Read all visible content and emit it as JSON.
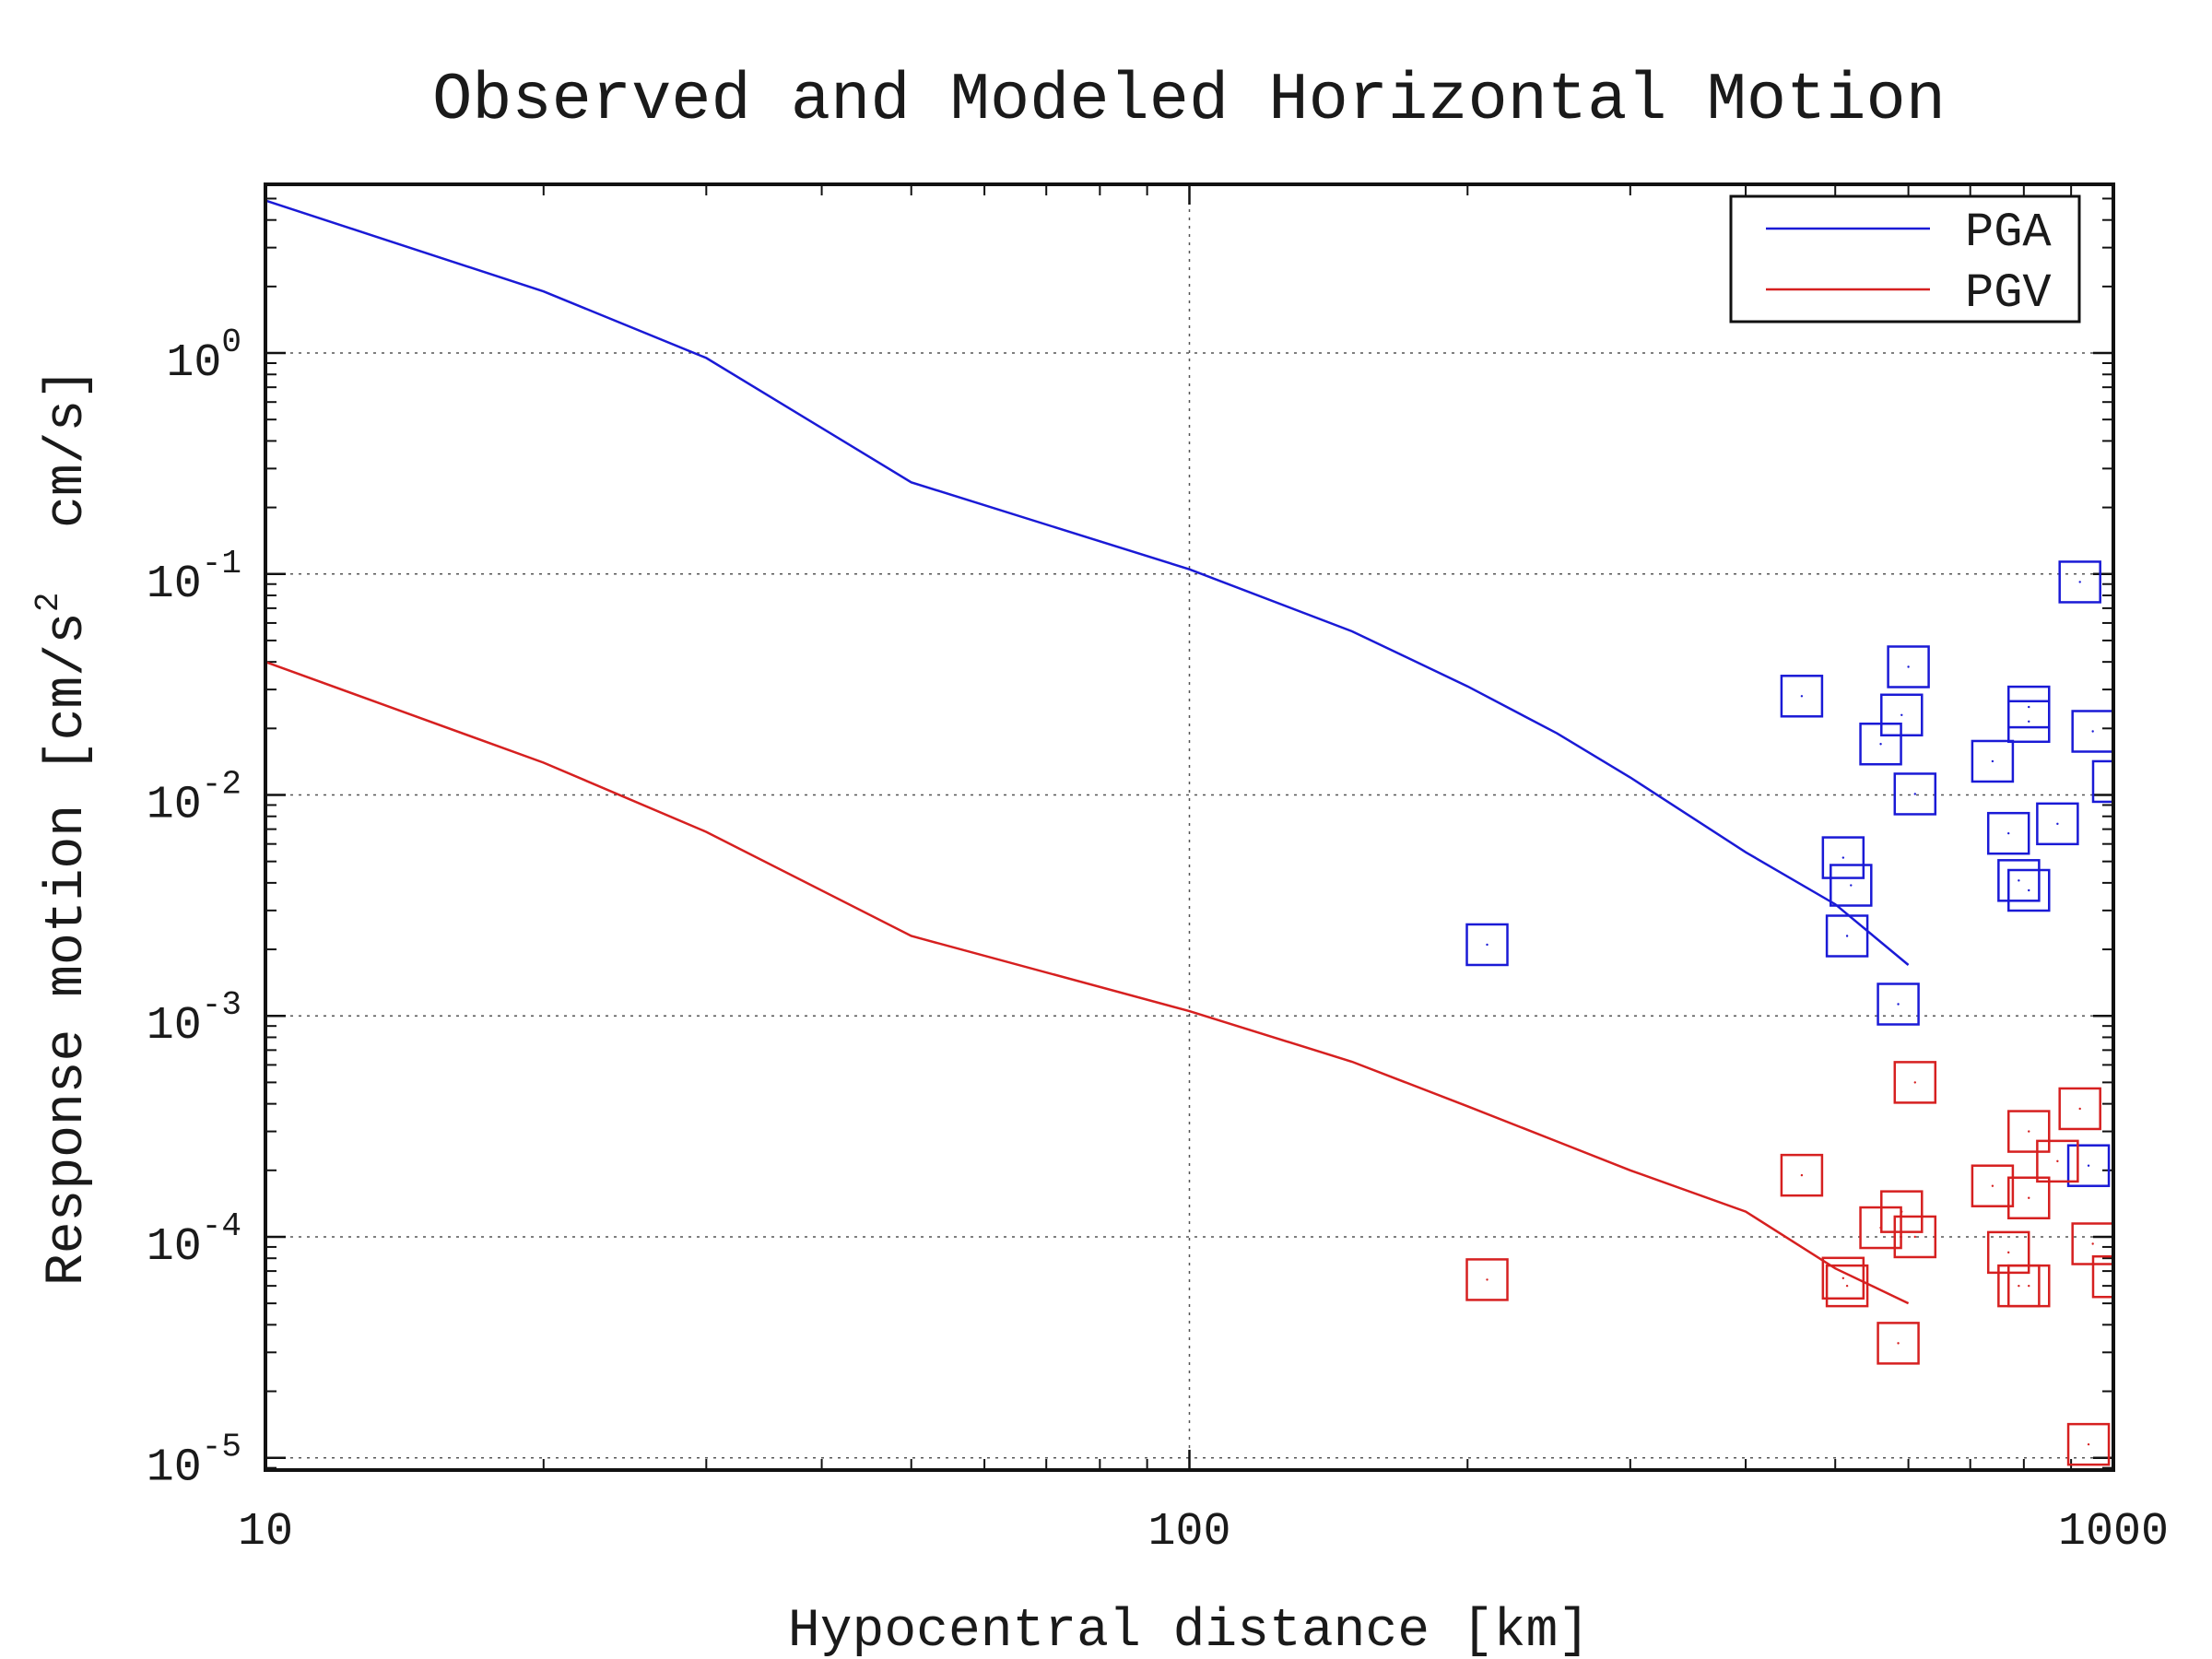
{
  "chart_data": {
    "type": "scatter",
    "title": "Observed and Modeled Horizontal Motion",
    "xlabel": "Hypocentral distance [km]",
    "ylabel": {
      "prefix": "Response motion [cm/s",
      "sup": "2",
      "suffix": "  cm/s]"
    },
    "x_scale": "log",
    "y_scale": "log",
    "xlim": [
      10,
      1000
    ],
    "ylim": [
      8.8e-06,
      5.8
    ],
    "x_ticks": [
      {
        "value": 10,
        "label": "10"
      },
      {
        "value": 100,
        "label": "100"
      },
      {
        "value": 1000,
        "label": "1000"
      }
    ],
    "y_ticks": [
      {
        "value": 1e-05,
        "base": "10",
        "exp": "-5"
      },
      {
        "value": 0.0001,
        "base": "10",
        "exp": "-4"
      },
      {
        "value": 0.001,
        "base": "10",
        "exp": "-3"
      },
      {
        "value": 0.01,
        "base": "10",
        "exp": "-2"
      },
      {
        "value": 0.1,
        "base": "10",
        "exp": "-1"
      },
      {
        "value": 1,
        "base": "10",
        "exp": "0"
      }
    ],
    "grid": true,
    "legend_position": "top-right",
    "series": [
      {
        "name": "PGA",
        "color": "#1a1ad6",
        "model": [
          [
            10,
            4.9
          ],
          [
            20,
            1.9
          ],
          [
            30,
            0.95
          ],
          [
            50,
            0.26
          ],
          [
            100,
            0.105
          ],
          [
            150,
            0.055
          ],
          [
            200,
            0.031
          ],
          [
            250,
            0.019
          ],
          [
            300,
            0.012
          ],
          [
            400,
            0.0055
          ],
          [
            500,
            0.0032
          ],
          [
            600,
            0.0017
          ]
        ],
        "observed": [
          [
            210,
            0.0021
          ],
          [
            460,
            0.028
          ],
          [
            510,
            0.0052
          ],
          [
            520,
            0.0039
          ],
          [
            515,
            0.0023
          ],
          [
            560,
            0.017
          ],
          [
            590,
            0.023
          ],
          [
            600,
            0.038
          ],
          [
            610,
            0.0101
          ],
          [
            585,
            0.00113
          ],
          [
            740,
            0.0142
          ],
          [
            770,
            0.0067
          ],
          [
            790,
            0.0041
          ],
          [
            810,
            0.0037
          ],
          [
            810,
            0.025
          ],
          [
            810,
            0.0215
          ],
          [
            870,
            0.0074
          ],
          [
            920,
            0.092
          ],
          [
            950,
            0.0194
          ],
          [
            1000,
            0.0115
          ],
          [
            940,
            0.00021
          ]
        ]
      },
      {
        "name": "PGV",
        "color": "#d62020",
        "model": [
          [
            10,
            0.04
          ],
          [
            20,
            0.014
          ],
          [
            30,
            0.0068
          ],
          [
            50,
            0.0023
          ],
          [
            100,
            0.00105
          ],
          [
            150,
            0.00062
          ],
          [
            200,
            0.00039
          ],
          [
            250,
            0.00027
          ],
          [
            300,
            0.0002
          ],
          [
            400,
            0.00013
          ],
          [
            500,
            7.2e-05
          ],
          [
            600,
            5e-05
          ]
        ],
        "observed": [
          [
            210,
            6.4e-05
          ],
          [
            460,
            0.00019
          ],
          [
            510,
            6.5e-05
          ],
          [
            515,
            6e-05
          ],
          [
            560,
            0.00011
          ],
          [
            590,
            0.00013
          ],
          [
            585,
            3.3e-05
          ],
          [
            610,
            0.0001
          ],
          [
            610,
            0.0005
          ],
          [
            740,
            0.00017
          ],
          [
            770,
            8.5e-05
          ],
          [
            790,
            6e-05
          ],
          [
            810,
            6e-05
          ],
          [
            810,
            0.00015
          ],
          [
            810,
            0.0003
          ],
          [
            870,
            0.00022
          ],
          [
            920,
            0.00038
          ],
          [
            950,
            9.3e-05
          ],
          [
            1000,
            6.6e-05
          ],
          [
            940,
            1.15e-05
          ]
        ]
      }
    ]
  }
}
